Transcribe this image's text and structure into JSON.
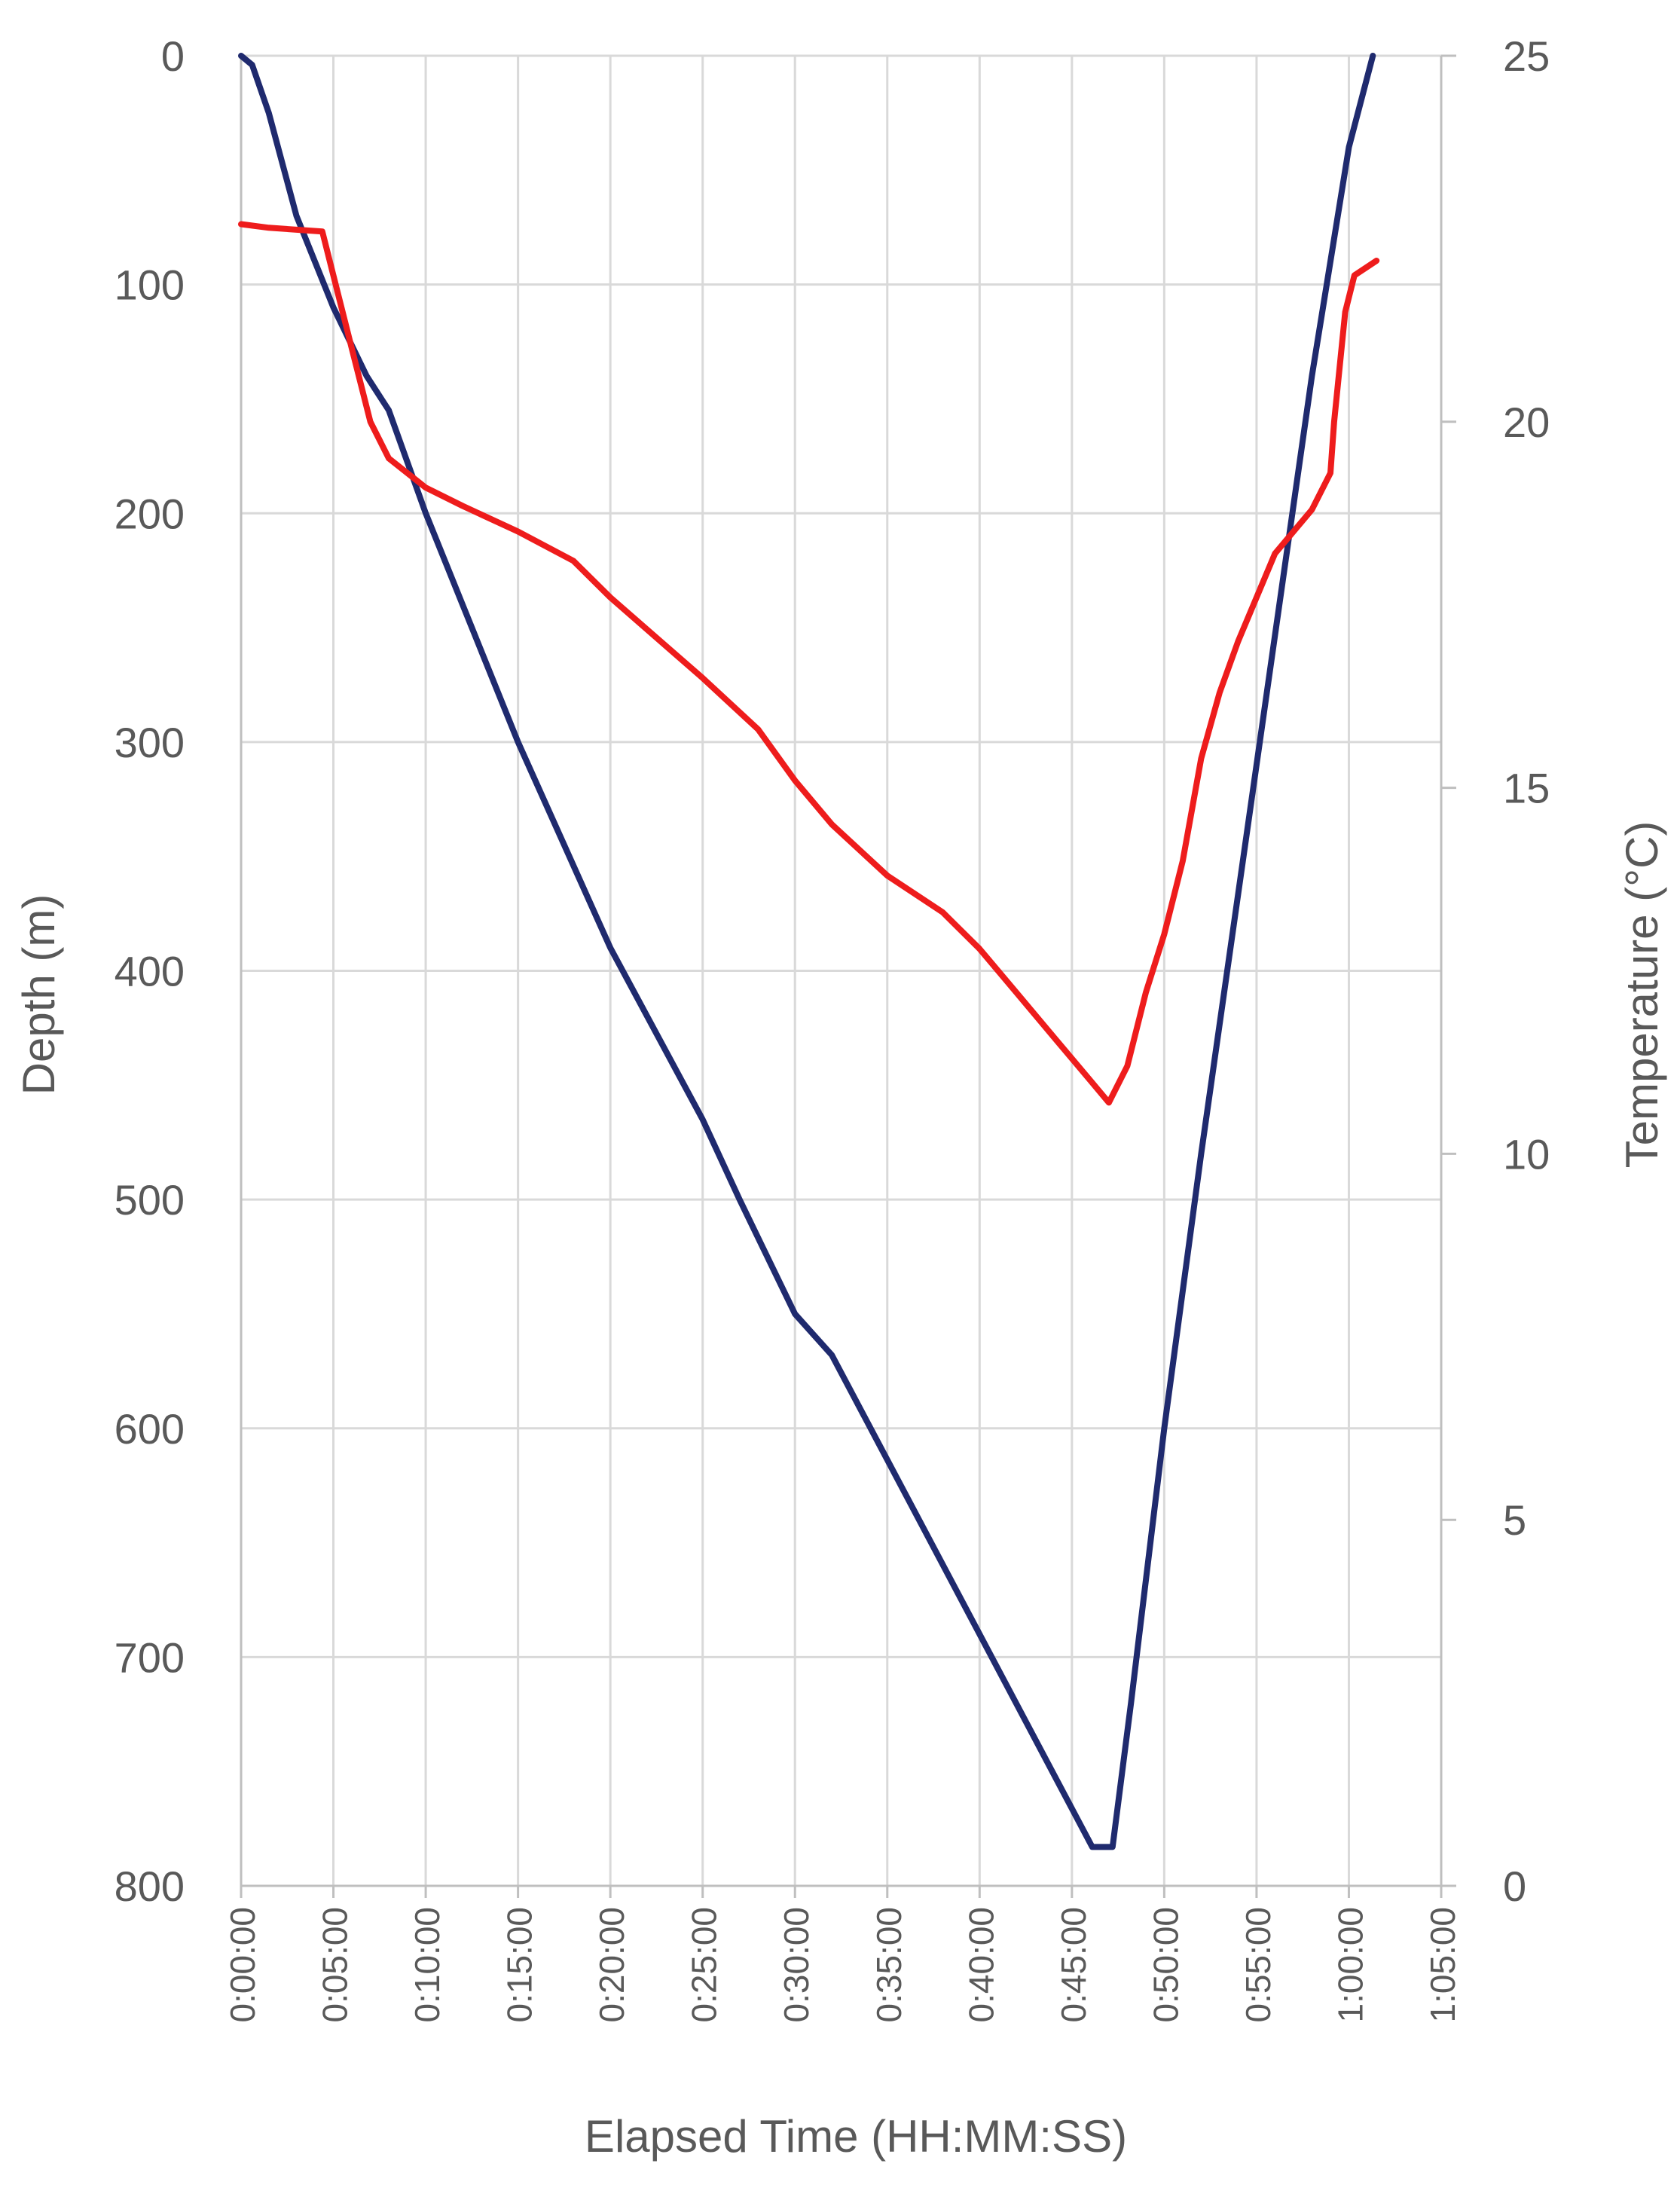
{
  "chart_data": {
    "type": "line",
    "title": "",
    "xlabel": "Elapsed Time (HH:MM:SS)",
    "ylabel": "Depth (m)",
    "y2label": "Temperature (°C)",
    "xlim": [
      0,
      65
    ],
    "ylim": [
      0,
      800
    ],
    "y_reversed": true,
    "y2lim": [
      0,
      25
    ],
    "x_tick_labels": [
      "0:00:00",
      "0:05:00",
      "0:10:00",
      "0:15:00",
      "0:20:00",
      "0:25:00",
      "0:30:00",
      "0:35:00",
      "0:40:00",
      "0:45:00",
      "0:50:00",
      "0:55:00",
      "1:00:00",
      "1:05:00"
    ],
    "y_tick_labels": [
      "0",
      "100",
      "200",
      "300",
      "400",
      "500",
      "600",
      "700",
      "800"
    ],
    "y2_tick_labels": [
      "0",
      "5",
      "10",
      "15",
      "20",
      "25"
    ],
    "grid": true,
    "legend": "none",
    "series": [
      {
        "axis": "left",
        "color": "#1f2a6e",
        "x": [
          0,
          0.6,
          1.5,
          3,
          5,
          6.8,
          8,
          10,
          12,
          15,
          20,
          25,
          27,
          30,
          32,
          40,
          46.1,
          47.2,
          48.2,
          50,
          52,
          55,
          58,
          60,
          61.3
        ],
        "values": [
          0,
          4,
          25,
          70,
          110,
          140,
          155,
          200,
          240,
          300,
          390,
          465,
          500,
          550,
          568,
          690,
          783,
          783,
          720,
          600,
          480,
          310,
          140,
          40,
          0
        ]
      },
      {
        "axis": "right",
        "color": "#ee1c1c",
        "x": [
          0,
          1.5,
          4.4,
          5,
          6,
          7,
          8,
          10,
          12,
          15,
          18,
          20,
          25,
          28,
          30,
          32,
          35,
          38,
          40,
          42,
          44,
          46,
          47,
          48,
          49,
          50,
          51,
          52,
          53,
          54,
          56,
          58,
          59,
          59.2,
          59.8,
          60.3,
          61.5
        ],
        "values": [
          22.7,
          22.65,
          22.6,
          22,
          21,
          20,
          19.5,
          19.1,
          18.85,
          18.5,
          18.1,
          17.6,
          16.5,
          15.8,
          15.1,
          14.5,
          13.8,
          13.3,
          12.8,
          12.2,
          11.6,
          11.0,
          10.7,
          11.2,
          12.2,
          13.0,
          14.0,
          15.4,
          16.3,
          17.0,
          18.2,
          18.8,
          19.3,
          20.0,
          21.5,
          22.0,
          22.2
        ]
      }
    ]
  }
}
